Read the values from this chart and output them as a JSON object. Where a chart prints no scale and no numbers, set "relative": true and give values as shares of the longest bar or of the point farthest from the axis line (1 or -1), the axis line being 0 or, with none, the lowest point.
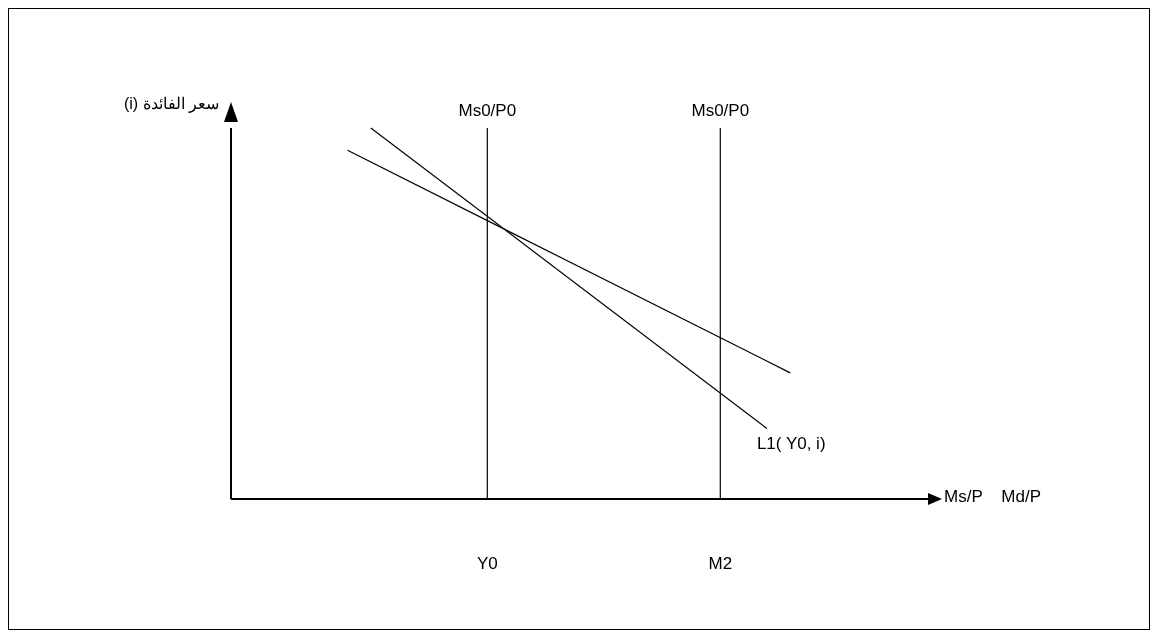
{
  "chart_data": {
    "type": "line",
    "relative": true,
    "xlabel": "Ms/P    Md/P",
    "ylabel": "سعر الفائدة (i)",
    "categories": [
      null,
      null,
      null,
      null,
      null,
      null,
      null,
      null,
      null,
      null,
      null,
      "Y0",
      null,
      null,
      null,
      null,
      null,
      null,
      null,
      null,
      null,
      "M2",
      null,
      null,
      null,
      null,
      null,
      null,
      null,
      null,
      null
    ],
    "series": [
      {
        "name": "L1( Y0, i)",
        "color": "#000000",
        "values": [
          null,
          null,
          null,
          null,
          null,
          null,
          1,
          null,
          null,
          null,
          null,
          null,
          null,
          null,
          null,
          null,
          null,
          null,
          null,
          null,
          null,
          null,
          null,
          0.19,
          null,
          null,
          null,
          null,
          null,
          null,
          null
        ]
      },
      {
        "color": "#000000",
        "values": [
          null,
          null,
          null,
          null,
          null,
          0.94,
          null,
          null,
          null,
          null,
          null,
          null,
          null,
          null,
          null,
          null,
          null,
          null,
          null,
          null,
          null,
          null,
          null,
          null,
          0.34,
          null,
          null,
          null,
          null,
          null,
          null
        ]
      }
    ],
    "ref_lines": [
      {
        "axis": "x",
        "value": "Y0",
        "label": "Ms0/P0",
        "color": "#000000"
      },
      {
        "axis": "x",
        "value": "M2",
        "label": "Ms0/P0",
        "color": "#000000"
      }
    ],
    "grid": false,
    "legend": false,
    "marker": "none",
    "line_style": "solid"
  }
}
